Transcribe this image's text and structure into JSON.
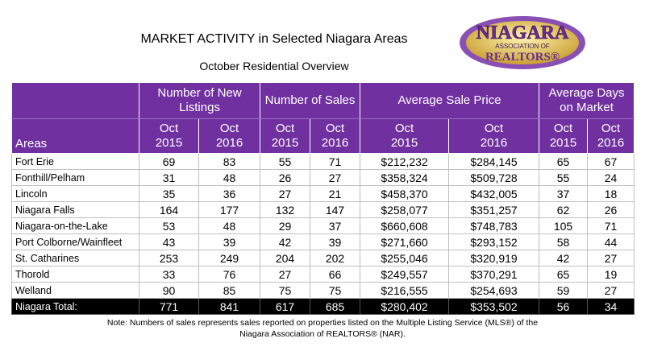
{
  "header": {
    "title": "MARKET ACTIVITY in Selected Niagara Areas",
    "subtitle": "October Residential Overview"
  },
  "logo": {
    "name": "NIAGARA",
    "line2": "ASSOCIATION OF",
    "line3": "REALTORS®"
  },
  "table": {
    "group_headers": [
      "Number of New Listings",
      "Number of Sales",
      "Average Sale Price",
      "Average Days on Market"
    ],
    "column_headers": [
      "Areas",
      "Oct 2015",
      "Oct 2016",
      "Oct 2015",
      "Oct 2016",
      "Oct 2015",
      "Oct 2016",
      "Oct 2015",
      "Oct 2016"
    ],
    "rows": [
      [
        "Fort Erie",
        "69",
        "83",
        "55",
        "71",
        "$212,232",
        "$284,145",
        "65",
        "67"
      ],
      [
        "Fonthill/Pelham",
        "31",
        "48",
        "26",
        "27",
        "$358,324",
        "$509,728",
        "55",
        "24"
      ],
      [
        "Lincoln",
        "35",
        "36",
        "27",
        "21",
        "$458,370",
        "$432,005",
        "37",
        "18"
      ],
      [
        "Niagara Falls",
        "164",
        "177",
        "132",
        "147",
        "$258,077",
        "$351,257",
        "62",
        "26"
      ],
      [
        "Niagara-on-the-Lake",
        "53",
        "48",
        "29",
        "37",
        "$660,608",
        "$748,783",
        "105",
        "71"
      ],
      [
        "Port Colborne/Wainfleet",
        "43",
        "39",
        "42",
        "39",
        "$271,660",
        "$293,152",
        "58",
        "44"
      ],
      [
        "St. Catharines",
        "253",
        "249",
        "204",
        "202",
        "$255,046",
        "$320,919",
        "42",
        "27"
      ],
      [
        "Thorold",
        "33",
        "76",
        "27",
        "66",
        "$249,557",
        "$370,291",
        "65",
        "19"
      ],
      [
        "Welland",
        "90",
        "85",
        "75",
        "75",
        "$216,555",
        "$254,693",
        "59",
        "27"
      ]
    ],
    "total": [
      "Niagara Total:",
      "771",
      "841",
      "617",
      "685",
      "$280,402",
      "$353,502",
      "56",
      "34"
    ]
  },
  "note": "Note: Numbers of sales represents sales reported on properties listed on the Multiple Listing Service (MLS®) of the Niagara Association of REALTORS® (NAR)."
}
